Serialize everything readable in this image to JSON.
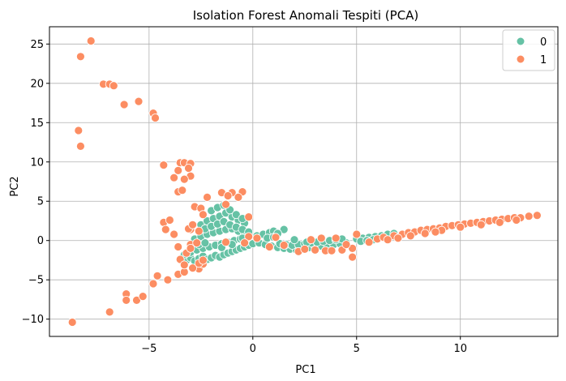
{
  "chart_data": {
    "type": "scatter",
    "title": "Isolation Forest Anomali Tespiti (PCA)",
    "xlabel": "PC1",
    "ylabel": "PC2",
    "xlim": [
      -9.8,
      14.7
    ],
    "ylim": [
      -12.2,
      27.2
    ],
    "x_ticks": [
      -5,
      0,
      5,
      10
    ],
    "y_ticks": [
      -10,
      -5,
      0,
      5,
      10,
      15,
      20,
      25
    ],
    "grid": true,
    "legend": {
      "position": "top-right"
    },
    "series": [
      {
        "name": "0",
        "color": "#66c2a5",
        "points": [
          [
            -3.2,
            -2.5
          ],
          [
            -3.0,
            -2.2
          ],
          [
            -2.8,
            -2.6
          ],
          [
            -2.6,
            -2.3
          ],
          [
            -2.4,
            -2.0
          ],
          [
            -2.2,
            -2.4
          ],
          [
            -2.0,
            -2.2
          ],
          [
            -1.8,
            -1.9
          ],
          [
            -1.6,
            -2.1
          ],
          [
            -1.4,
            -1.8
          ],
          [
            -1.2,
            -1.6
          ],
          [
            -1.0,
            -1.4
          ],
          [
            -0.8,
            -1.2
          ],
          [
            -0.6,
            -1.0
          ],
          [
            -0.4,
            -0.8
          ],
          [
            -0.2,
            -0.6
          ],
          [
            0.0,
            -0.4
          ],
          [
            -3.0,
            -1.5
          ],
          [
            -2.7,
            -1.2
          ],
          [
            -2.4,
            -1.0
          ],
          [
            -2.1,
            -0.8
          ],
          [
            -1.8,
            -0.6
          ],
          [
            -1.5,
            -0.4
          ],
          [
            -1.2,
            -0.2
          ],
          [
            -0.9,
            0.0
          ],
          [
            -0.6,
            0.2
          ],
          [
            -0.3,
            0.4
          ],
          [
            -2.8,
            0.2
          ],
          [
            -2.5,
            0.5
          ],
          [
            -2.2,
            0.8
          ],
          [
            -1.9,
            1.0
          ],
          [
            -1.6,
            1.2
          ],
          [
            -1.3,
            1.4
          ],
          [
            -1.0,
            1.5
          ],
          [
            -0.7,
            1.2
          ],
          [
            -0.4,
            0.9
          ],
          [
            -2.5,
            2.0
          ],
          [
            -2.2,
            2.5
          ],
          [
            -1.9,
            2.8
          ],
          [
            -1.6,
            3.1
          ],
          [
            -1.3,
            3.5
          ],
          [
            -1.0,
            3.0
          ],
          [
            -0.7,
            2.6
          ],
          [
            -0.4,
            2.2
          ],
          [
            -2.0,
            3.8
          ],
          [
            -1.7,
            4.2
          ],
          [
            -1.4,
            4.5
          ],
          [
            -1.1,
            3.9
          ],
          [
            -0.8,
            3.3
          ],
          [
            -0.5,
            2.8
          ],
          [
            -2.3,
            1.5
          ],
          [
            -2.0,
            1.8
          ],
          [
            -1.7,
            2.1
          ],
          [
            -1.4,
            2.4
          ],
          [
            -1.1,
            2.0
          ],
          [
            -0.8,
            1.7
          ],
          [
            -0.5,
            1.4
          ],
          [
            -0.2,
            1.1
          ],
          [
            -2.6,
            -0.5
          ],
          [
            -2.3,
            -0.3
          ],
          [
            0.2,
            0.6
          ],
          [
            0.5,
            0.8
          ],
          [
            0.8,
            1.0
          ],
          [
            1.0,
            1.2
          ],
          [
            0.3,
            -0.3
          ],
          [
            0.6,
            -0.5
          ],
          [
            0.9,
            -0.7
          ],
          [
            1.2,
            -0.9
          ],
          [
            1.5,
            -1.0
          ],
          [
            1.8,
            -1.1
          ],
          [
            2.1,
            -1.2
          ],
          [
            2.4,
            -1.0
          ],
          [
            2.7,
            -0.9
          ],
          [
            3.0,
            -0.8
          ],
          [
            3.3,
            -0.7
          ],
          [
            3.6,
            -0.6
          ],
          [
            3.9,
            -0.5
          ],
          [
            4.2,
            -0.4
          ],
          [
            4.5,
            -0.3
          ],
          [
            1.3,
            -0.4
          ],
          [
            1.6,
            -0.5
          ],
          [
            1.9,
            -0.6
          ],
          [
            2.2,
            -0.5
          ],
          [
            2.5,
            -0.4
          ],
          [
            2.8,
            -0.3
          ],
          [
            3.1,
            -0.2
          ],
          [
            3.4,
            -0.1
          ],
          [
            3.7,
            0.0
          ],
          [
            4.0,
            0.1
          ],
          [
            4.3,
            0.2
          ],
          [
            1.5,
            1.4
          ],
          [
            1.2,
            0.9
          ],
          [
            0.7,
            0.3
          ],
          [
            1.0,
            0.4
          ],
          [
            2.0,
            0.1
          ],
          [
            2.6,
            -0.2
          ],
          [
            5.0,
            0.2
          ],
          [
            5.3,
            0.3
          ],
          [
            5.6,
            0.4
          ],
          [
            5.9,
            0.5
          ],
          [
            6.2,
            0.6
          ],
          [
            6.5,
            0.8
          ],
          [
            6.8,
            0.9
          ],
          [
            5.2,
            -0.1
          ],
          [
            5.5,
            0.0
          ],
          [
            5.8,
            0.1
          ],
          [
            -1.5,
            -0.9
          ],
          [
            -1.0,
            -0.5
          ],
          [
            -0.5,
            0.3
          ],
          [
            -3.3,
            -1.8
          ]
        ]
      },
      {
        "name": "1",
        "color": "#fc8d62",
        "points": [
          [
            -7.8,
            25.4
          ],
          [
            -8.3,
            23.4
          ],
          [
            -7.2,
            19.9
          ],
          [
            -6.9,
            19.9
          ],
          [
            -6.7,
            19.7
          ],
          [
            -6.2,
            17.3
          ],
          [
            -5.5,
            17.7
          ],
          [
            -4.8,
            16.2
          ],
          [
            -4.7,
            15.6
          ],
          [
            -8.4,
            14.0
          ],
          [
            -8.3,
            12.0
          ],
          [
            -4.3,
            9.6
          ],
          [
            -3.5,
            9.9
          ],
          [
            -3.3,
            9.9
          ],
          [
            -3.0,
            9.8
          ],
          [
            -3.1,
            9.2
          ],
          [
            -3.0,
            8.2
          ],
          [
            -3.6,
            8.9
          ],
          [
            -3.8,
            8.0
          ],
          [
            -3.3,
            7.8
          ],
          [
            -3.6,
            6.2
          ],
          [
            -3.4,
            6.4
          ],
          [
            -2.8,
            4.3
          ],
          [
            -2.5,
            4.1
          ],
          [
            -2.2,
            5.5
          ],
          [
            -1.5,
            6.1
          ],
          [
            -1.0,
            6.1
          ],
          [
            -0.5,
            6.2
          ],
          [
            -1.2,
            5.7
          ],
          [
            -0.7,
            5.5
          ],
          [
            -3.0,
            1.4
          ],
          [
            -2.6,
            1.2
          ],
          [
            -4.3,
            2.3
          ],
          [
            -4.0,
            2.6
          ],
          [
            -3.8,
            0.8
          ],
          [
            -4.2,
            1.4
          ],
          [
            -0.2,
            3.0
          ],
          [
            -0.2,
            0.5
          ],
          [
            -3.0,
            -0.5
          ],
          [
            -2.7,
            -0.3
          ],
          [
            -3.1,
            1.5
          ],
          [
            -2.9,
            2.0
          ],
          [
            -2.4,
            3.3
          ],
          [
            -1.3,
            4.6
          ],
          [
            -4.1,
            -5.0
          ],
          [
            -4.6,
            -4.5
          ],
          [
            -4.8,
            -5.5
          ],
          [
            -3.6,
            -4.3
          ],
          [
            -3.3,
            -4.0
          ],
          [
            -2.6,
            -3.6
          ],
          [
            -2.9,
            -3.5
          ],
          [
            -2.4,
            -3.0
          ],
          [
            -6.1,
            -6.8
          ],
          [
            -6.1,
            -7.6
          ],
          [
            -5.6,
            -7.6
          ],
          [
            -5.3,
            -7.1
          ],
          [
            -6.9,
            -9.1
          ],
          [
            -8.7,
            -10.4
          ],
          [
            -3.6,
            -0.8
          ],
          [
            -3.2,
            -1.6
          ],
          [
            -3.5,
            -2.4
          ],
          [
            -3.0,
            -1.0
          ],
          [
            -2.6,
            -2.9
          ],
          [
            -2.4,
            -2.5
          ],
          [
            -3.3,
            -3.1
          ],
          [
            -1.3,
            -0.2
          ],
          [
            -0.4,
            -0.3
          ],
          [
            0.2,
            0.3
          ],
          [
            0.8,
            -0.8
          ],
          [
            1.1,
            0.4
          ],
          [
            1.5,
            -0.6
          ],
          [
            2.2,
            -1.4
          ],
          [
            2.5,
            -1.1
          ],
          [
            3.0,
            -1.2
          ],
          [
            3.5,
            -1.3
          ],
          [
            3.8,
            -1.3
          ],
          [
            4.3,
            -1.2
          ],
          [
            4.8,
            -2.1
          ],
          [
            4.8,
            -1.0
          ],
          [
            5.0,
            0.8
          ],
          [
            3.3,
            0.3
          ],
          [
            2.8,
            0.1
          ],
          [
            4.0,
            0.3
          ],
          [
            4.5,
            -0.5
          ],
          [
            5.6,
            -0.2
          ],
          [
            6.0,
            0.2
          ],
          [
            6.3,
            0.4
          ],
          [
            6.8,
            0.6
          ],
          [
            7.2,
            0.8
          ],
          [
            7.5,
            1.0
          ],
          [
            7.8,
            1.1
          ],
          [
            8.1,
            1.3
          ],
          [
            8.4,
            1.4
          ],
          [
            8.7,
            1.5
          ],
          [
            9.0,
            1.6
          ],
          [
            9.3,
            1.8
          ],
          [
            9.6,
            1.9
          ],
          [
            9.9,
            2.0
          ],
          [
            10.2,
            2.1
          ],
          [
            10.5,
            2.2
          ],
          [
            10.8,
            2.3
          ],
          [
            11.1,
            2.4
          ],
          [
            11.4,
            2.5
          ],
          [
            11.7,
            2.6
          ],
          [
            12.0,
            2.7
          ],
          [
            12.3,
            2.8
          ],
          [
            12.6,
            2.9
          ],
          [
            12.9,
            2.9
          ],
          [
            13.3,
            3.1
          ],
          [
            13.7,
            3.2
          ],
          [
            7.0,
            0.3
          ],
          [
            7.6,
            0.6
          ],
          [
            8.3,
            0.9
          ],
          [
            9.1,
            1.3
          ],
          [
            10.0,
            1.7
          ],
          [
            11.0,
            2.0
          ],
          [
            11.9,
            2.3
          ],
          [
            12.7,
            2.6
          ],
          [
            6.5,
            0.1
          ],
          [
            8.8,
            1.1
          ]
        ]
      }
    ]
  }
}
